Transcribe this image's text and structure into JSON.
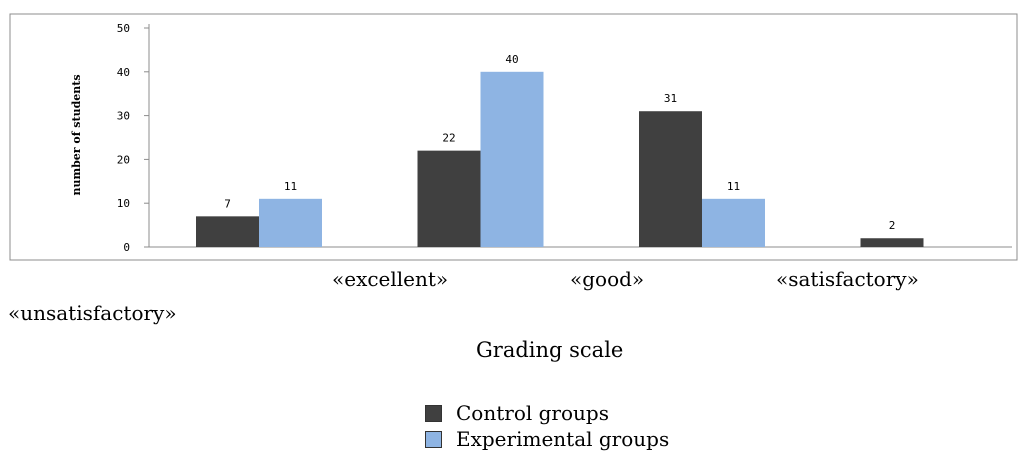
{
  "chart_data": {
    "type": "bar",
    "categories": [
      "«unsatisfactory»",
      "«excellent»",
      "«good»",
      "«satisfactory»"
    ],
    "series": [
      {
        "name": "Control groups",
        "values": [
          7,
          22,
          31,
          2
        ],
        "color": "#404040"
      },
      {
        "name": "Experimental groups",
        "values": [
          11,
          40,
          11,
          0
        ],
        "color": "#8eb4e3"
      }
    ],
    "data_labels": [
      [
        "7",
        "22",
        "31",
        "2"
      ],
      [
        "11",
        "40",
        "11",
        ""
      ]
    ],
    "xlabel": "Grading scale",
    "ylabel": "number of students",
    "ylim": [
      0,
      50
    ],
    "yticks": [
      0,
      10,
      20,
      30,
      40,
      50
    ],
    "grid": false,
    "legend_position": "bottom"
  }
}
